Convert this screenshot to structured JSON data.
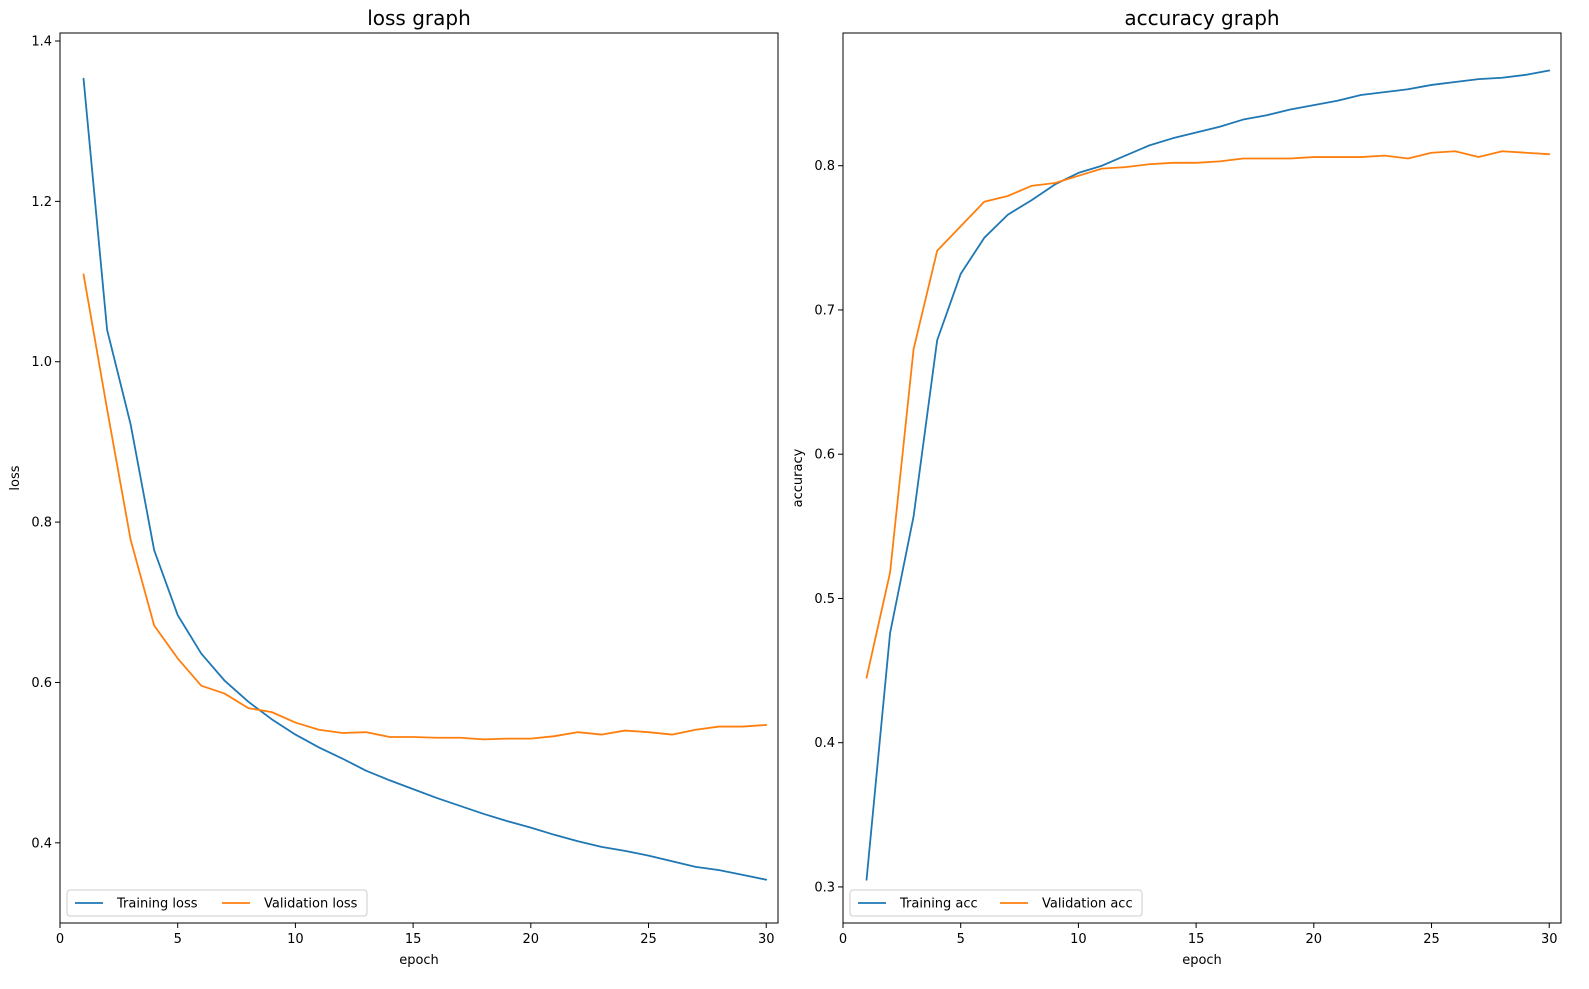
{
  "chart_data": [
    {
      "type": "line",
      "title": "loss graph",
      "xlabel": "epoch",
      "ylabel": "loss",
      "xlim": [
        0,
        30.5
      ],
      "ylim": [
        0.3,
        1.41
      ],
      "xticks": [
        0,
        5,
        10,
        15,
        20,
        25,
        30
      ],
      "yticks": [
        0.4,
        0.6,
        0.8,
        1.0,
        1.2,
        1.4
      ],
      "ytick_labels": [
        "0.4",
        "0.6",
        "0.8",
        "1.0",
        "1.2",
        "1.4"
      ],
      "xtick_labels": [
        "0",
        "5",
        "10",
        "15",
        "20",
        "25",
        "30"
      ],
      "legend_position": "bottom-left",
      "grid": false,
      "x": [
        1,
        2,
        3,
        4,
        5,
        6,
        7,
        8,
        9,
        10,
        11,
        12,
        13,
        14,
        15,
        16,
        17,
        18,
        19,
        20,
        21,
        22,
        23,
        24,
        25,
        26,
        27,
        28,
        29,
        30
      ],
      "series": [
        {
          "name": "Training loss",
          "color": "#1f77b4",
          "values": [
            1.353,
            1.04,
            0.922,
            0.765,
            0.684,
            0.636,
            0.602,
            0.576,
            0.554,
            0.535,
            0.519,
            0.505,
            0.49,
            0.478,
            0.467,
            0.456,
            0.446,
            0.436,
            0.427,
            0.419,
            0.41,
            0.402,
            0.395,
            0.39,
            0.384,
            0.377,
            0.37,
            0.366,
            0.36,
            0.354
          ]
        },
        {
          "name": "Validation loss",
          "color": "#ff7f0e",
          "values": [
            1.109,
            0.941,
            0.778,
            0.671,
            0.63,
            0.596,
            0.586,
            0.568,
            0.563,
            0.55,
            0.541,
            0.537,
            0.538,
            0.532,
            0.532,
            0.531,
            0.531,
            0.529,
            0.53,
            0.53,
            0.533,
            0.538,
            0.535,
            0.54,
            0.538,
            0.535,
            0.541,
            0.545,
            0.545,
            0.547
          ]
        }
      ]
    },
    {
      "type": "line",
      "title": "accuracy graph",
      "xlabel": "epoch",
      "ylabel": "accuracy",
      "xlim": [
        0,
        30.5
      ],
      "ylim": [
        0.275,
        0.892
      ],
      "xticks": [
        0,
        5,
        10,
        15,
        20,
        25,
        30
      ],
      "yticks": [
        0.3,
        0.4,
        0.5,
        0.6,
        0.7,
        0.8
      ],
      "ytick_labels": [
        "0.3",
        "0.4",
        "0.5",
        "0.6",
        "0.7",
        "0.8"
      ],
      "xtick_labels": [
        "0",
        "5",
        "10",
        "15",
        "20",
        "25",
        "30"
      ],
      "legend_position": "bottom-left",
      "grid": false,
      "x": [
        1,
        2,
        3,
        4,
        5,
        6,
        7,
        8,
        9,
        10,
        11,
        12,
        13,
        14,
        15,
        16,
        17,
        18,
        19,
        20,
        21,
        22,
        23,
        24,
        25,
        26,
        27,
        28,
        29,
        30
      ],
      "series": [
        {
          "name": "Training acc",
          "color": "#1f77b4",
          "values": [
            0.305,
            0.476,
            0.557,
            0.679,
            0.725,
            0.75,
            0.766,
            0.776,
            0.787,
            0.795,
            0.8,
            0.807,
            0.814,
            0.819,
            0.823,
            0.827,
            0.832,
            0.835,
            0.839,
            0.842,
            0.845,
            0.849,
            0.851,
            0.853,
            0.856,
            0.858,
            0.86,
            0.861,
            0.863,
            0.866
          ]
        },
        {
          "name": "Validation acc",
          "color": "#ff7f0e",
          "values": [
            0.445,
            0.518,
            0.673,
            0.741,
            0.758,
            0.775,
            0.779,
            0.786,
            0.788,
            0.793,
            0.798,
            0.799,
            0.801,
            0.802,
            0.802,
            0.803,
            0.805,
            0.805,
            0.805,
            0.806,
            0.806,
            0.806,
            0.807,
            0.805,
            0.809,
            0.81,
            0.806,
            0.81,
            0.809,
            0.808
          ]
        }
      ]
    }
  ]
}
